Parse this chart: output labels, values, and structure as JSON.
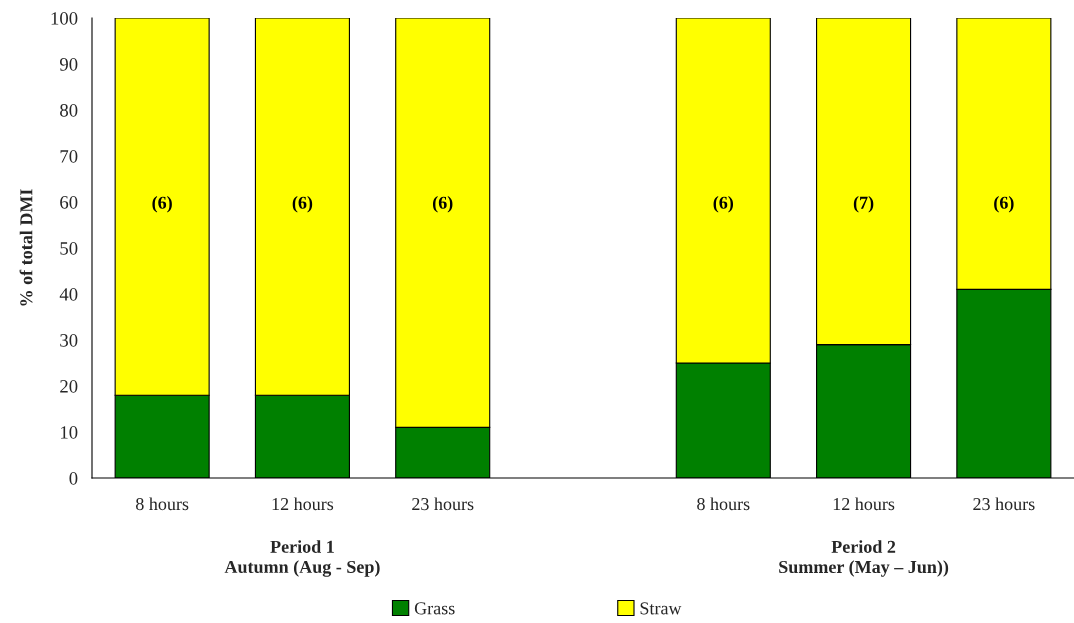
{
  "chart_data": {
    "type": "bar",
    "stacked": true,
    "ylabel": "% of total DMI",
    "categories": [
      "8 hours",
      "12 hours",
      "23 hours",
      null,
      "8 hours",
      "12 hours",
      "23 hours"
    ],
    "series": [
      {
        "name": "Grass",
        "color": "#008000",
        "values": [
          18,
          18,
          11,
          null,
          25,
          29,
          41
        ]
      },
      {
        "name": "Straw",
        "color": "#ffff00",
        "values": [
          82,
          82,
          89,
          null,
          75,
          71,
          59
        ]
      }
    ],
    "ylim": [
      0,
      100
    ],
    "yticks": [
      0,
      10,
      20,
      30,
      40,
      50,
      60,
      70,
      80,
      90,
      100
    ],
    "annotations": [
      "(6)",
      "(6)",
      "(6)",
      "(6)",
      "(7)",
      "(6)",
      "Period 1\nAutumn (Aug - Sep)",
      "Period 2\nSummer (May – Jun))"
    ],
    "legend": "bottom",
    "grid": false
  }
}
